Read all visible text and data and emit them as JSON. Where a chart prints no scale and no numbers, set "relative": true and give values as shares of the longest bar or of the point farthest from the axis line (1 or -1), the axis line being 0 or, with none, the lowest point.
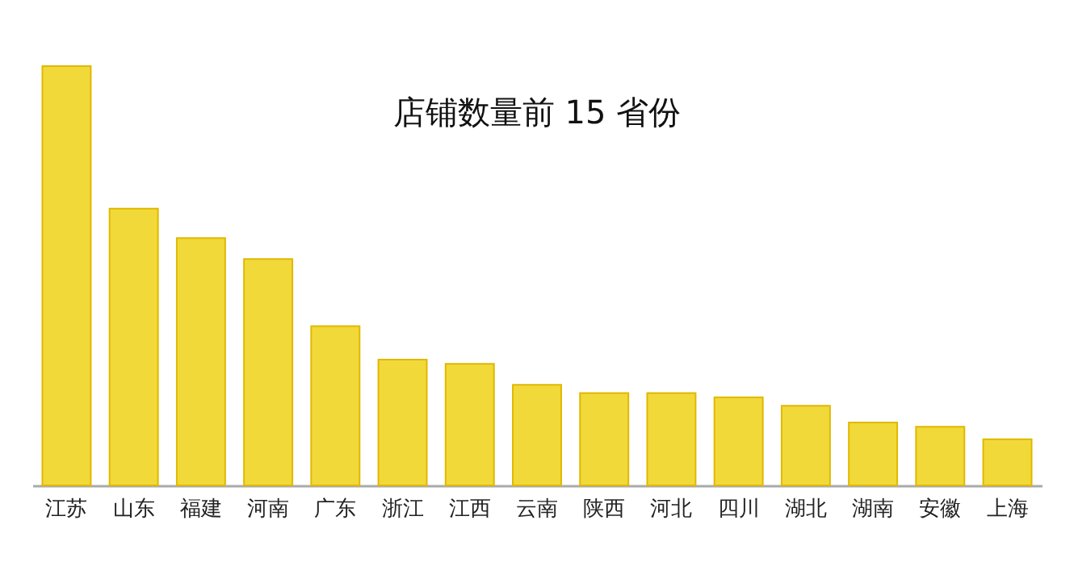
{
  "chart_data": {
    "type": "bar",
    "title": "店铺数量前 15 省份",
    "relative": true,
    "categories": [
      "江苏",
      "山东",
      "福建",
      "河南",
      "广东",
      "浙江",
      "江西",
      "云南",
      "陕西",
      "河北",
      "四川",
      "湖北",
      "湖南",
      "安徽",
      "上海"
    ],
    "values": [
      1,
      0.66,
      0.59,
      0.54,
      0.38,
      0.3,
      0.29,
      0.24,
      0.22,
      0.22,
      0.21,
      0.19,
      0.15,
      0.14,
      0.11
    ],
    "color": "#f2d93a"
  }
}
